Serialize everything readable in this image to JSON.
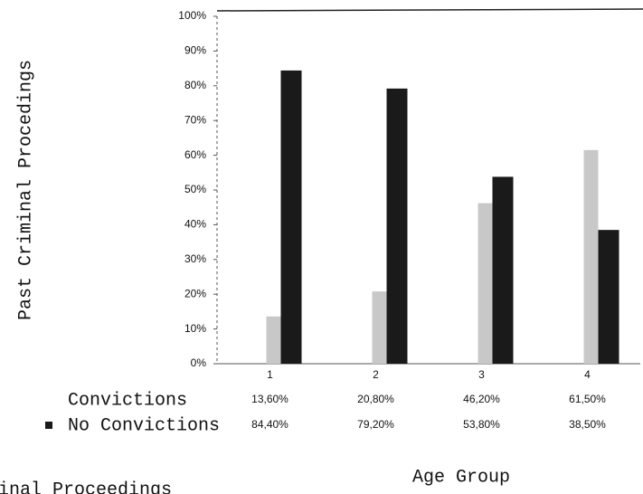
{
  "chart_data": {
    "type": "bar",
    "title": "inal Proceedings",
    "y_label": "Past Criminal Procedings",
    "x_label": "Age Group",
    "categories": [
      "1",
      "2",
      "3",
      "4"
    ],
    "series": [
      {
        "name": "Convictions",
        "color": "#c8c8c8",
        "values": [
          13.6,
          20.8,
          46.2,
          61.5
        ],
        "value_labels": [
          "13,60%",
          "20,80%",
          "46,20%",
          "61,50%"
        ]
      },
      {
        "name": "No Convictions",
        "color": "#1a1a1a",
        "values": [
          84.4,
          79.2,
          53.8,
          38.5
        ],
        "value_labels": [
          "84,40%",
          "79,20%",
          "53,80%",
          "38,50%"
        ]
      }
    ],
    "ylim": [
      0,
      100
    ],
    "yticks": [
      {
        "value": 0,
        "label": "0%"
      },
      {
        "value": 10,
        "label": "10%"
      },
      {
        "value": 20,
        "label": "20%"
      },
      {
        "value": 30,
        "label": "30%"
      },
      {
        "value": 40,
        "label": "40%"
      },
      {
        "value": 50,
        "label": "50%"
      },
      {
        "value": 60,
        "label": "60%"
      },
      {
        "value": 70,
        "label": "70%"
      },
      {
        "value": 80,
        "label": "80%"
      },
      {
        "value": 90,
        "label": "90%"
      },
      {
        "value": 100,
        "label": "100%"
      }
    ],
    "grid": false
  }
}
